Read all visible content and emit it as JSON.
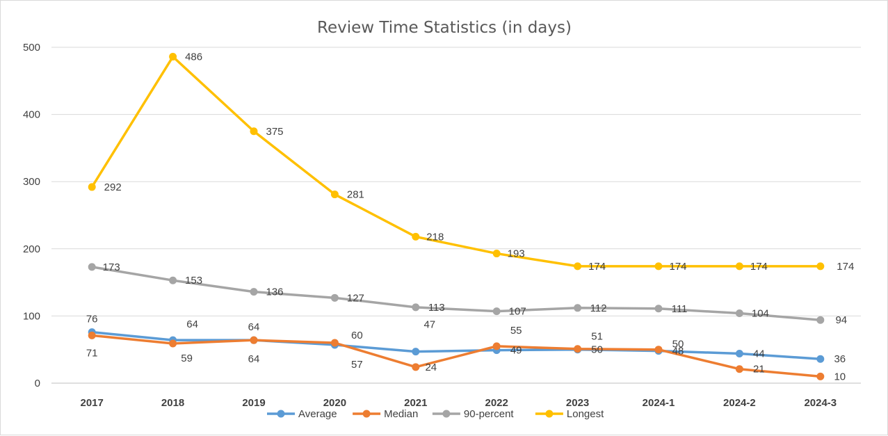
{
  "chart_data": {
    "type": "line",
    "title": "Review Time Statistics (in days)",
    "xlabel": "",
    "ylabel": "",
    "categories": [
      "2017",
      "2018",
      "2019",
      "2020",
      "2021",
      "2022",
      "2023",
      "2024-1",
      "2024-2",
      "2024-3"
    ],
    "ylim": [
      0,
      500
    ],
    "yticks": [
      "0",
      "100",
      "200",
      "300",
      "400",
      "500"
    ],
    "grid": true,
    "legend_position": "bottom",
    "series": [
      {
        "name": "Average",
        "color": "#5B9BD5",
        "values": [
          76,
          64,
          64,
          57,
          47,
          49,
          50,
          48,
          44,
          36
        ],
        "labels": [
          "76",
          "64",
          "64",
          "57",
          "47",
          "49",
          "50",
          "48",
          "44",
          "36"
        ]
      },
      {
        "name": "Median",
        "color": "#ED7D31",
        "values": [
          71,
          59,
          64,
          60,
          24,
          55,
          51,
          50,
          21,
          10
        ],
        "labels": [
          "71",
          "59",
          "64",
          "60",
          "24",
          "55",
          "51",
          "50",
          "21",
          "10"
        ]
      },
      {
        "name": "90-percent",
        "color": "#A5A5A5",
        "values": [
          173,
          153,
          136,
          127,
          113,
          107,
          112,
          111,
          104,
          94
        ],
        "labels": [
          "173",
          "153",
          "136",
          "127",
          "113",
          "107",
          "112",
          "111",
          "104",
          "94"
        ]
      },
      {
        "name": "Longest",
        "color": "#FFC000",
        "values": [
          292,
          486,
          375,
          281,
          218,
          193,
          174,
          174,
          174,
          174
        ],
        "labels": [
          "292",
          "486",
          "375",
          "281",
          "218",
          "193",
          "174",
          "174",
          "174",
          "174"
        ]
      }
    ]
  }
}
